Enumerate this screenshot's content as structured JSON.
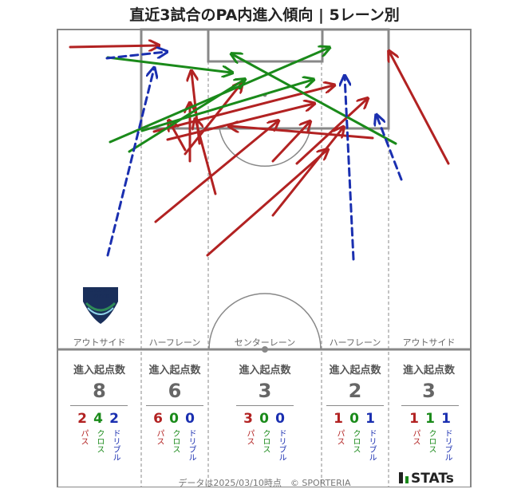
{
  "title": "直近3試合のPA内進入傾向 | 5レーン別",
  "club_logo": {
    "line1": "TOKUSHIMA",
    "line2": "VORTIS"
  },
  "lanes": [
    {
      "label": "アウトサイド",
      "stat_label": "進入起点数",
      "total": "8",
      "pass": "2",
      "cross": "4",
      "dribble": "2"
    },
    {
      "label": "ハーフレーン",
      "stat_label": "進入起点数",
      "total": "6",
      "pass": "6",
      "cross": "0",
      "dribble": "0"
    },
    {
      "label": "センターレーン",
      "stat_label": "進入起点数",
      "total": "3",
      "pass": "3",
      "cross": "0",
      "dribble": "0"
    },
    {
      "label": "ハーフレーン",
      "stat_label": "進入起点数",
      "total": "2",
      "pass": "1",
      "cross": "0",
      "dribble": "1"
    },
    {
      "label": "アウトサイド",
      "stat_label": "進入起点数",
      "total": "3",
      "pass": "1",
      "cross": "1",
      "dribble": "1"
    }
  ],
  "type_labels": {
    "pass": "パス",
    "cross": "クロス",
    "dribble": "ドリブル"
  },
  "colors": {
    "pass": "#b22222",
    "cross": "#1a8a1a",
    "dribble": "#1a2fb0",
    "pitch_line": "#888888"
  },
  "footer": "データは2025/03/10時点　© SPORTERIA",
  "brand": "STATs"
}
